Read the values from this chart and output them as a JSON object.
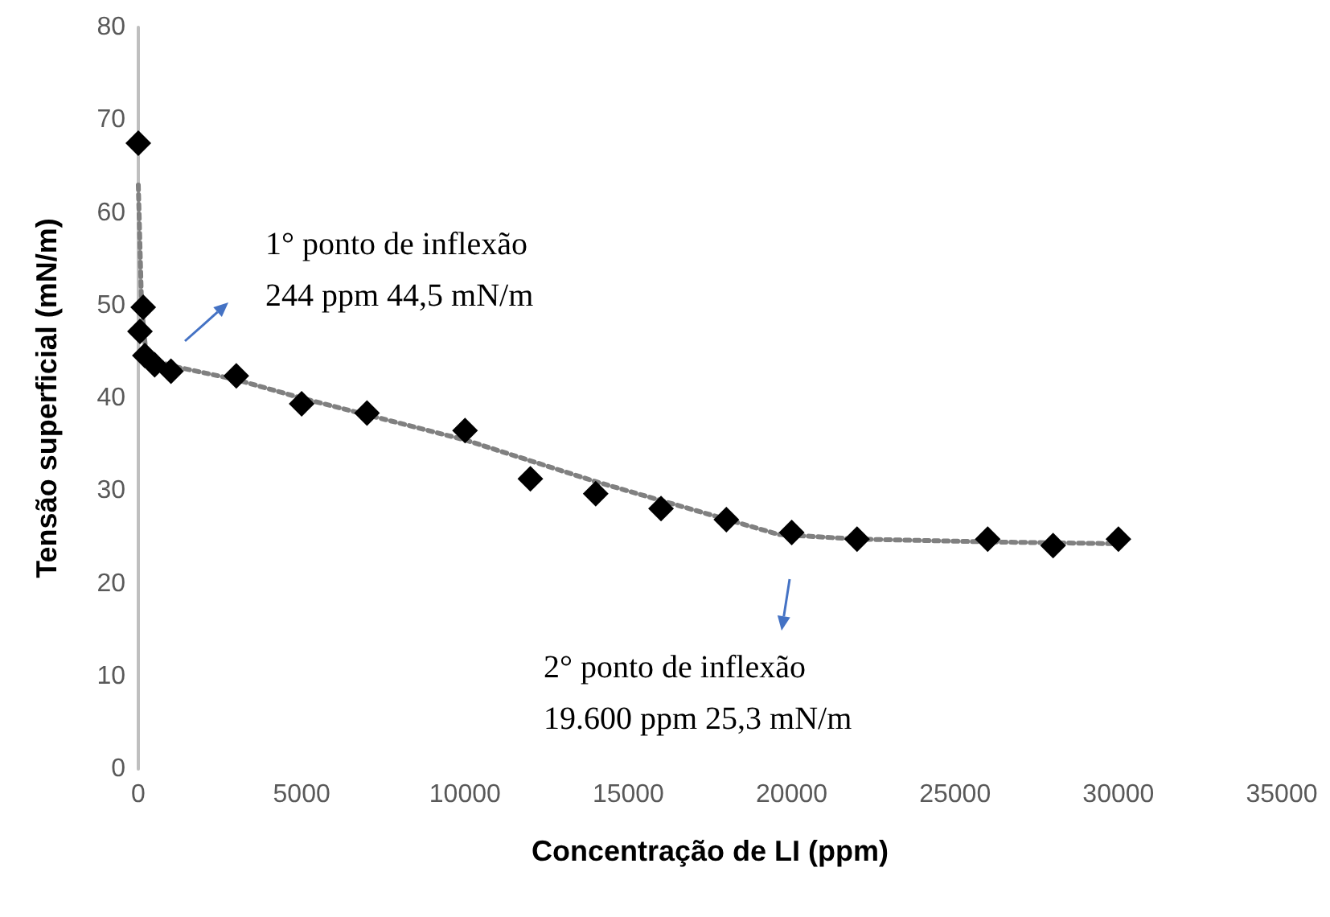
{
  "chart_data": {
    "type": "scatter",
    "xlabel": "Concentração de LI (ppm)",
    "ylabel": "Tensão superficial (mN/m)",
    "xlim": [
      0,
      35000
    ],
    "xticks": [
      0,
      5000,
      10000,
      15000,
      20000,
      25000,
      30000,
      35000
    ],
    "ylim": [
      0,
      80
    ],
    "yticks": [
      0,
      10,
      20,
      30,
      40,
      50,
      60,
      70,
      80
    ],
    "grid": false,
    "marker": "diamond",
    "series": [
      {
        "color": "#000000",
        "x": [
          0,
          150,
          50,
          200,
          500,
          1000,
          3000,
          5000,
          7000,
          10000,
          12000,
          14000,
          16000,
          18000,
          20000,
          22000,
          26000,
          28000,
          30000
        ],
        "values": [
          67.5,
          49.8,
          47.2,
          44.6,
          43.6,
          42.9,
          42.4,
          39.4,
          38.4,
          36.5,
          31.3,
          29.7,
          28.1,
          26.9,
          25.5,
          24.8,
          24.8,
          24.1,
          24.8
        ]
      },
      {
        "type": "line",
        "color": "#808080",
        "line_style": "dotted",
        "marker": "none",
        "x": [
          0,
          100,
          244,
          1000,
          3000,
          5000,
          10000,
          14000,
          19600,
          22000,
          26000,
          30000
        ],
        "values": [
          63,
          50,
          44.5,
          43.5,
          42,
          40,
          35.5,
          31,
          25.3,
          24.8,
          24.5,
          24.3
        ]
      }
    ],
    "annotations": [
      "1° ponto de inflexão\n244 ppm 44,5 mN/m",
      "2° ponto de inflexão\n19.600 ppm 25,3 mN/m"
    ]
  }
}
